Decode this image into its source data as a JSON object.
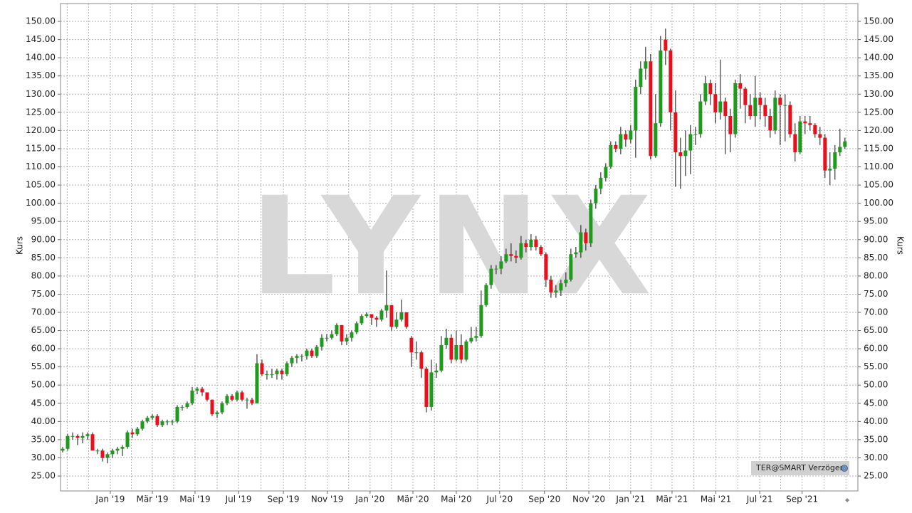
{
  "chart_data": {
    "type": "candlestick",
    "watermark": "LYNX",
    "badge": "TER@SMART Verzögert",
    "y_label": "Kurs",
    "up_color": "#1f9a1f",
    "down_color": "#e8101c",
    "grid": true,
    "xlim": [
      -0.43,
      159.6
    ],
    "xticks": [
      {
        "value": 9.57,
        "label": "Jan '19"
      },
      {
        "value": 18.0,
        "label": "Mär '19"
      },
      {
        "value": 26.57,
        "label": "Mai '19"
      },
      {
        "value": 35.3,
        "label": "Jul '19"
      },
      {
        "value": 44.3,
        "label": "Sep '19"
      },
      {
        "value": 53.1,
        "label": "Nov '19"
      },
      {
        "value": 61.7,
        "label": "Jan '20"
      },
      {
        "value": 70.3,
        "label": "Mär '20"
      },
      {
        "value": 79.0,
        "label": "Mai '20"
      },
      {
        "value": 87.7,
        "label": "Jul '20"
      },
      {
        "value": 96.7,
        "label": "Sep '20"
      },
      {
        "value": 105.6,
        "label": "Nov '20"
      },
      {
        "value": 114.0,
        "label": "Jan '21"
      },
      {
        "value": 122.3,
        "label": "Mär '21"
      },
      {
        "value": 131.1,
        "label": "Mai '21"
      },
      {
        "value": 139.9,
        "label": "Jul '21"
      },
      {
        "value": 148.4,
        "label": "Sep '21"
      }
    ],
    "xminor": [
      0.9,
      5.2,
      13.8,
      22.3,
      31.0,
      39.8,
      48.7,
      57.4,
      66.0,
      74.6,
      83.3,
      92.2,
      101.1,
      109.8,
      118.1,
      126.7,
      135.5,
      144.1,
      152.8,
      157.2
    ],
    "ylim": [
      20.9,
      154.9
    ],
    "yticks": [
      {
        "value": 25,
        "label": "25.00"
      },
      {
        "value": 30,
        "label": "30.00"
      },
      {
        "value": 35,
        "label": "35.00"
      },
      {
        "value": 40,
        "label": "40.00"
      },
      {
        "value": 45,
        "label": "45.00"
      },
      {
        "value": 50,
        "label": "50.00"
      },
      {
        "value": 55,
        "label": "55.00"
      },
      {
        "value": 60,
        "label": "60.00"
      },
      {
        "value": 65,
        "label": "65.00"
      },
      {
        "value": 70,
        "label": "70.00"
      },
      {
        "value": 75,
        "label": "75.00"
      },
      {
        "value": 80,
        "label": "80.00"
      },
      {
        "value": 85,
        "label": "85.00"
      },
      {
        "value": 90,
        "label": "90.00"
      },
      {
        "value": 95,
        "label": "95.00"
      },
      {
        "value": 100,
        "label": "100.00"
      },
      {
        "value": 105,
        "label": "105.00"
      },
      {
        "value": 110,
        "label": "110.00"
      },
      {
        "value": 115,
        "label": "115.00"
      },
      {
        "value": 120,
        "label": "120.00"
      },
      {
        "value": 125,
        "label": "125.00"
      },
      {
        "value": 130,
        "label": "130.00"
      },
      {
        "value": 135,
        "label": "135.00"
      },
      {
        "value": 140,
        "label": "140.00"
      },
      {
        "value": 145,
        "label": "145.00"
      },
      {
        "value": 150,
        "label": "150.00"
      }
    ],
    "ohlc": [
      [
        32,
        33,
        31.5,
        32.5
      ],
      [
        32.5,
        36.5,
        32,
        36
      ],
      [
        36,
        37,
        35,
        36
      ],
      [
        36,
        36.5,
        33.5,
        35.5
      ],
      [
        35.5,
        37,
        34,
        36
      ],
      [
        36,
        37,
        35,
        36.5
      ],
      [
        36.5,
        37,
        33,
        32
      ],
      [
        32,
        32.5,
        31,
        32
      ],
      [
        32,
        32.5,
        29,
        30
      ],
      [
        30,
        31.5,
        28.5,
        31
      ],
      [
        31,
        32.5,
        30,
        32
      ],
      [
        32,
        33,
        31,
        32.5
      ],
      [
        32.5,
        33.5,
        30.5,
        33
      ],
      [
        33,
        37.5,
        32.5,
        37
      ],
      [
        37,
        38,
        35.5,
        36.5
      ],
      [
        36.5,
        38.5,
        36,
        38
      ],
      [
        38,
        40.5,
        37.5,
        40
      ],
      [
        40,
        41.5,
        39.5,
        41
      ],
      [
        41,
        42,
        40.5,
        41.5
      ],
      [
        41.5,
        42,
        38.5,
        39
      ],
      [
        39,
        40.5,
        38.5,
        40
      ],
      [
        40,
        40.5,
        39,
        40
      ],
      [
        40,
        40.5,
        39,
        40
      ],
      [
        40,
        44.5,
        39.5,
        44
      ],
      [
        44,
        44.5,
        43,
        44
      ],
      [
        44,
        45.5,
        43.5,
        45
      ],
      [
        45,
        49.5,
        44.5,
        48.5
      ],
      [
        48.5,
        49.5,
        47.5,
        49
      ],
      [
        49,
        49.5,
        47,
        48
      ],
      [
        48,
        48,
        45.5,
        46
      ],
      [
        46,
        46,
        41.5,
        42
      ],
      [
        42,
        43,
        41,
        42.5
      ],
      [
        42.5,
        45.5,
        42,
        45
      ],
      [
        45,
        47.5,
        44.5,
        47
      ],
      [
        47,
        47.5,
        45.5,
        46
      ],
      [
        46,
        48.5,
        45.5,
        48
      ],
      [
        48,
        48.5,
        45.5,
        46
      ],
      [
        46,
        46.5,
        43.5,
        46
      ],
      [
        46,
        46.5,
        44.5,
        45
      ],
      [
        45,
        58.5,
        45,
        56
      ],
      [
        56,
        57,
        52.5,
        53
      ],
      [
        53,
        54,
        51.5,
        53
      ],
      [
        53,
        54.5,
        52,
        53
      ],
      [
        53,
        54.5,
        51.5,
        54
      ],
      [
        54,
        54.5,
        51.5,
        53
      ],
      [
        53,
        56.5,
        52.5,
        56
      ],
      [
        56,
        58,
        55,
        57.5
      ],
      [
        57.5,
        58.5,
        56,
        58
      ],
      [
        58,
        58.5,
        56.5,
        58
      ],
      [
        58,
        60,
        57,
        59.5
      ],
      [
        59.5,
        60,
        57.5,
        58
      ],
      [
        58,
        61,
        57.5,
        60.5
      ],
      [
        60.5,
        64,
        59.5,
        63
      ],
      [
        63,
        64,
        62,
        63
      ],
      [
        63,
        65,
        62.5,
        64
      ],
      [
        64,
        67,
        63.5,
        66.5
      ],
      [
        66.5,
        66.5,
        61,
        62
      ],
      [
        62,
        64,
        61,
        63
      ],
      [
        63,
        65,
        62,
        64.5
      ],
      [
        64.5,
        67.5,
        64,
        67
      ],
      [
        67,
        69.5,
        66.5,
        69
      ],
      [
        69,
        70,
        68.5,
        69.5
      ],
      [
        69.5,
        69.5,
        66.5,
        68.5
      ],
      [
        68.5,
        69,
        66,
        68
      ],
      [
        68,
        71,
        67.5,
        70.5
      ],
      [
        70.5,
        81.5,
        68.5,
        72
      ],
      [
        72,
        72,
        65,
        66
      ],
      [
        66,
        70,
        65.5,
        68
      ],
      [
        68,
        73.5,
        67.5,
        70
      ],
      [
        70,
        70,
        65.5,
        66
      ],
      [
        63,
        63.5,
        55,
        59
      ],
      [
        59,
        62,
        57,
        59
      ],
      [
        59,
        59.5,
        52,
        54.5
      ],
      [
        54.5,
        55,
        42.5,
        44
      ],
      [
        44,
        57,
        43,
        53.5
      ],
      [
        53.5,
        56,
        52,
        54
      ],
      [
        54,
        63.5,
        53.5,
        61
      ],
      [
        61,
        65.5,
        60,
        63
      ],
      [
        63,
        64,
        56,
        57
      ],
      [
        57,
        65,
        56.5,
        61
      ],
      [
        61,
        64,
        56,
        57
      ],
      [
        57,
        62.5,
        56.5,
        62
      ],
      [
        62,
        66,
        61.5,
        63
      ],
      [
        63,
        66,
        62,
        63.5
      ],
      [
        63.5,
        76,
        63,
        72
      ],
      [
        72,
        78,
        71.5,
        77.5
      ],
      [
        77.5,
        83,
        76.5,
        82
      ],
      [
        82,
        83,
        80.5,
        82
      ],
      [
        82,
        85.5,
        80.5,
        84
      ],
      [
        84,
        87.5,
        83.5,
        86
      ],
      [
        86,
        89,
        84,
        85.5
      ],
      [
        85.5,
        87,
        83.5,
        85
      ],
      [
        85,
        91,
        84.5,
        89
      ],
      [
        89,
        90,
        86.5,
        88
      ],
      [
        88,
        91.5,
        87,
        90
      ],
      [
        90,
        91,
        87,
        88
      ],
      [
        88,
        88.5,
        85.5,
        86
      ],
      [
        86,
        86.5,
        77,
        79
      ],
      [
        79,
        80,
        74,
        75.5
      ],
      [
        75.5,
        77.5,
        74,
        76
      ],
      [
        76,
        79,
        74.5,
        78
      ],
      [
        78,
        81,
        77,
        79
      ],
      [
        79,
        87.5,
        78.5,
        86
      ],
      [
        86,
        88,
        85,
        86.5
      ],
      [
        86.5,
        94,
        85,
        92
      ],
      [
        92,
        93,
        87,
        89
      ],
      [
        89,
        101,
        88,
        100
      ],
      [
        100,
        105,
        98.5,
        104
      ],
      [
        104,
        108.5,
        102.5,
        107
      ],
      [
        107,
        111,
        106,
        110
      ],
      [
        110,
        117,
        109.5,
        116
      ],
      [
        116,
        117,
        114,
        115
      ],
      [
        115,
        121,
        113.5,
        119
      ],
      [
        119,
        120,
        115.5,
        117.5
      ],
      [
        117.5,
        121.5,
        116.5,
        120
      ],
      [
        120,
        134,
        112.5,
        132
      ],
      [
        132,
        139,
        130,
        137
      ],
      [
        137,
        143,
        134,
        139
      ],
      [
        139,
        141,
        112,
        113
      ],
      [
        113,
        130,
        112.5,
        122
      ],
      [
        122,
        146,
        121,
        142
      ],
      [
        145,
        148,
        138,
        142
      ],
      [
        142,
        142.5,
        120,
        125
      ],
      [
        125,
        131,
        104.5,
        114
      ],
      [
        114,
        118,
        104,
        113
      ],
      [
        113,
        120,
        107.5,
        114.5
      ],
      [
        114.5,
        121.5,
        108,
        119
      ],
      [
        119,
        121,
        116,
        119
      ],
      [
        119,
        130,
        118,
        128
      ],
      [
        128,
        135,
        127,
        133
      ],
      [
        133,
        134,
        127,
        130
      ],
      [
        130,
        133,
        122,
        125
      ],
      [
        125,
        139.5,
        123,
        128
      ],
      [
        128,
        129,
        113.5,
        124
      ],
      [
        124,
        126,
        114,
        119
      ],
      [
        119,
        134,
        118,
        133
      ],
      [
        133,
        135.5,
        126,
        131.5
      ],
      [
        131.5,
        132,
        122,
        127
      ],
      [
        127,
        130,
        123,
        124
      ],
      [
        124,
        135,
        121,
        129
      ],
      [
        129,
        130.5,
        123,
        127
      ],
      [
        127,
        129,
        121,
        124
      ],
      [
        124,
        126,
        118,
        120
      ],
      [
        120,
        131,
        119,
        129
      ],
      [
        129,
        130,
        116,
        127
      ],
      [
        127,
        130,
        117,
        127
      ],
      [
        127,
        128,
        118,
        119
      ],
      [
        119,
        122,
        111.5,
        114
      ],
      [
        114,
        124,
        113.5,
        122.5
      ],
      [
        122.5,
        124,
        119,
        122
      ],
      [
        122,
        124,
        120,
        121.5
      ],
      [
        121.5,
        122,
        118,
        119
      ],
      [
        119,
        121,
        116,
        118
      ],
      [
        118,
        119,
        107,
        109
      ],
      [
        109,
        114,
        105,
        109.5
      ],
      [
        109.5,
        116,
        106.5,
        114
      ],
      [
        114,
        120.5,
        113,
        115.5
      ],
      [
        115.5,
        118,
        115,
        117
      ]
    ]
  }
}
